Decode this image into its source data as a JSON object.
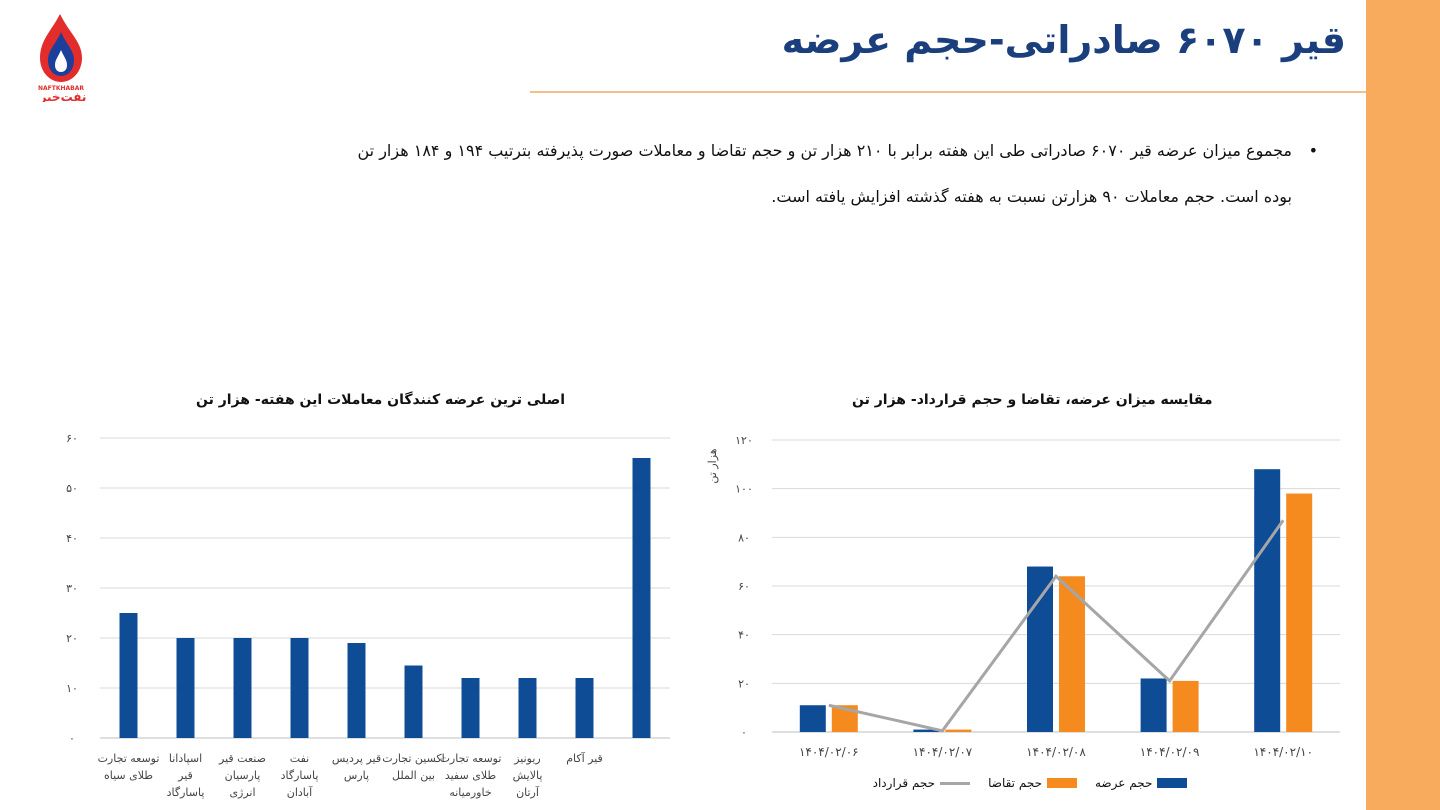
{
  "header": {
    "title": "قیر ۶۰۷۰ صادراتی-حجم عرضه",
    "logo_text_en": "NAFTKHABAR",
    "logo_text_fa": "نفت‌خبر"
  },
  "body": {
    "bullet_line1": "مجموع میزان عرضه قیر ۶۰۷۰ صادراتی طی این هفته برابر با ۲۱۰ هزار تن و حجم تقاضا و معاملات صورت پذیرفته بترتیب ۱۹۴ و ۱۸۴ هزار تن",
    "bullet_line2": "بوده است. حجم معاملات ۹۰ هزارتن نسبت به هفته گذشته افزایش یافته است."
  },
  "colors": {
    "accent_orange": "#f8ab5c",
    "title_blue": "#1b3f7d",
    "bar_blue": "#0f4c96",
    "bar_orange": "#f58a1f",
    "line_gray": "#a6a6a6"
  },
  "chart_data": [
    {
      "type": "bar",
      "title": "اصلی ترین عرضه کنندگان معاملات این هفته- هزار تن",
      "categories": [
        "توسعه تجارت طلای سیاه",
        "اسپادانا قیر پاسارگاد",
        "صنعت قیر پارسیان انرژی",
        "نفت پاسارگاد آبادان",
        "قیر پردیس پارس",
        "اکسین تجارت بین الملل",
        "توسعه تجارت طلای سفید خاورمیانه",
        "ریونیز پالایش آرتان",
        "قیر آکام",
        ""
      ],
      "values": [
        25,
        20,
        20,
        20,
        19,
        14.5,
        12,
        12,
        12,
        56
      ],
      "ylim": [
        0,
        60
      ],
      "yticks": [
        "۰",
        "۱۰",
        "۲۰",
        "۳۰",
        "۴۰",
        "۵۰",
        "۶۰"
      ],
      "grid": true
    },
    {
      "type": "bar",
      "title": "مقایسه میزان عرضه، تقاضا و حجم قرارداد-  هزار تن",
      "categories": [
        "۱۴۰۴/۰۲/۰۶",
        "۱۴۰۴/۰۲/۰۷",
        "۱۴۰۴/۰۲/۰۸",
        "۱۴۰۴/۰۲/۰۹",
        "۱۴۰۴/۰۲/۱۰"
      ],
      "series": [
        {
          "name": "حجم عرضه",
          "kind": "bar",
          "values": [
            11,
            1,
            68,
            22,
            108
          ]
        },
        {
          "name": "حجم تقاضا",
          "kind": "bar",
          "values": [
            11,
            1,
            64,
            21,
            98
          ]
        },
        {
          "name": "حجم قرارداد",
          "kind": "line",
          "values": [
            11,
            0.5,
            64,
            21,
            87
          ]
        }
      ],
      "ylabel": "هزار تن",
      "ylim": [
        0,
        120
      ],
      "yticks": [
        "۰",
        "۲۰",
        "۴۰",
        "۶۰",
        "۸۰",
        "۱۰۰",
        "۱۲۰"
      ],
      "grid": true,
      "legend": "bottom"
    }
  ]
}
